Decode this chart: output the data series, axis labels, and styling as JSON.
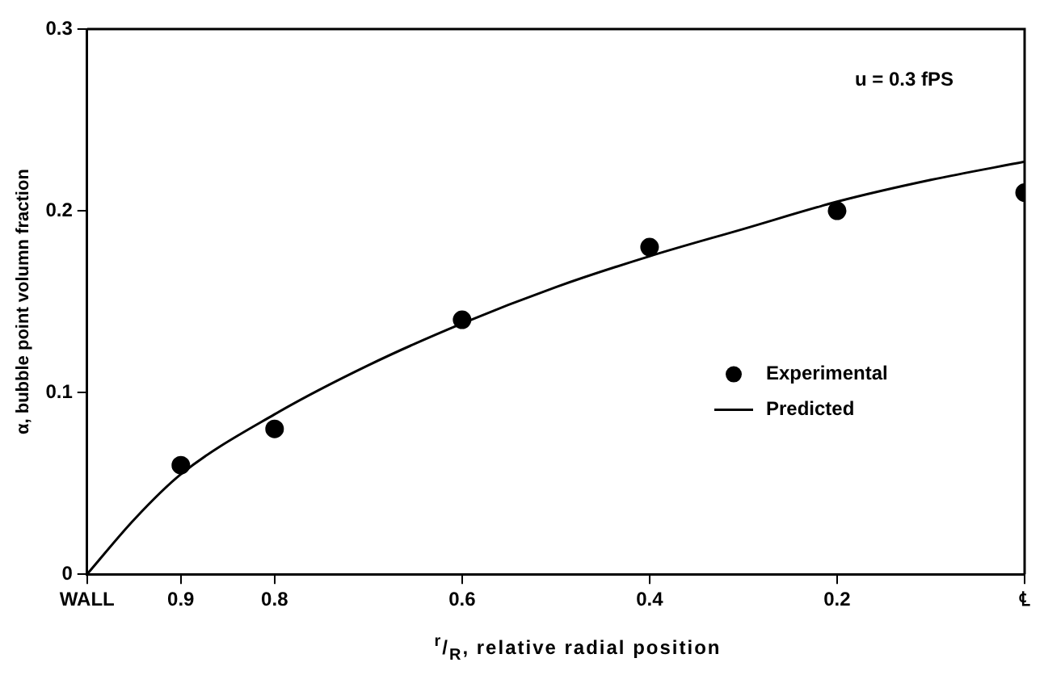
{
  "chart_data": {
    "type": "scatter",
    "xlabel": "$^{r}$/$_{R}$, relative radial position",
    "ylabel": "α, bubble point volumn fraction",
    "annotations": [
      "u = 0.3 fPS"
    ],
    "xlim": [
      1,
      0
    ],
    "xticks": [
      {
        "value": 1,
        "label": "WALL"
      },
      0.9,
      0.8,
      0.6,
      0.4,
      0.2,
      {
        "value": 0,
        "label": "℄"
      }
    ],
    "ylim": [
      0,
      0.3
    ],
    "yticks": [
      0,
      0.1,
      0.2,
      0.3
    ],
    "grid": false,
    "legend": "right",
    "series": [
      {
        "name": "Experimental",
        "type": "scatter",
        "marker": "circle",
        "color": "#000000",
        "x": [
          0.9,
          0.8,
          0.6,
          0.4,
          0.2,
          0
        ],
        "values": [
          0.06,
          0.08,
          0.14,
          0.18,
          0.2,
          0.21
        ]
      },
      {
        "name": "Predicted",
        "type": "line",
        "color": "#000000",
        "line_style": "solid",
        "x": [
          1,
          0.95,
          0.9,
          0.8,
          0.7,
          0.6,
          0.5,
          0.4,
          0.3,
          0.2,
          0.1,
          0
        ],
        "values": [
          0,
          0.03,
          0.055,
          0.088,
          0.115,
          0.138,
          0.158,
          0.175,
          0.19,
          0.205,
          0.217,
          0.227
        ]
      }
    ]
  }
}
